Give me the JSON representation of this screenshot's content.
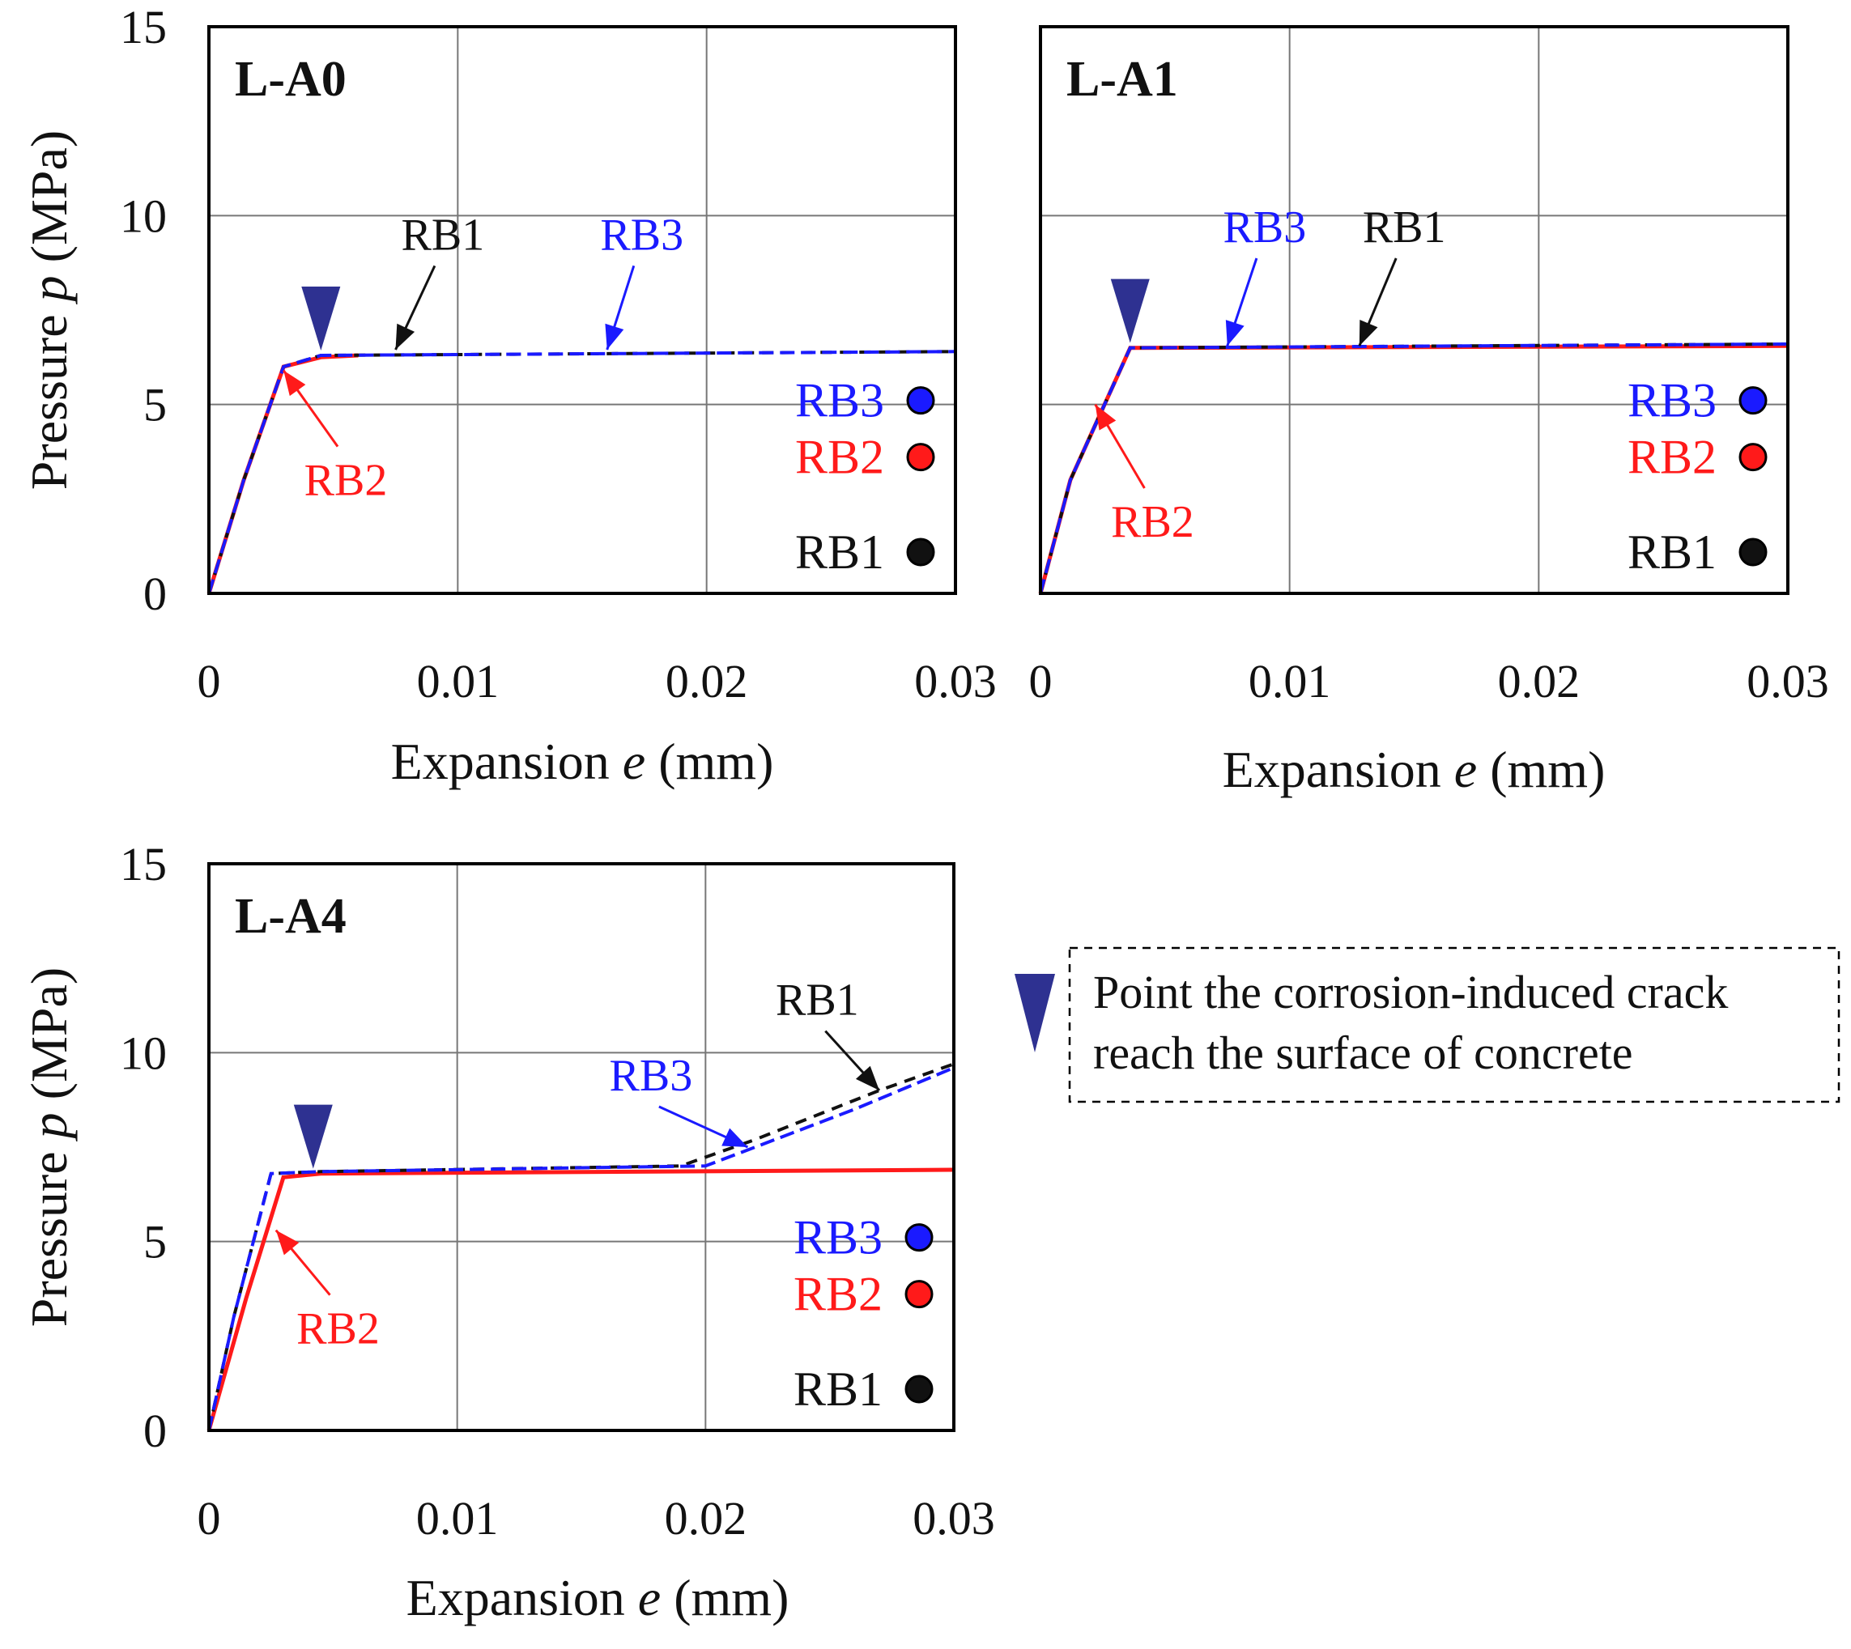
{
  "colors": {
    "RB1": "#111111",
    "RB2": "#ff1a1a",
    "RB3": "#1a1aff",
    "marker": "#2e3191"
  },
  "key": {
    "line1": "Point the corrosion-induced crack",
    "line2": "reach the surface of concrete",
    "marker_icon": "down-triangle-icon"
  },
  "chart_data": [
    {
      "type": "line",
      "title": "L-A0",
      "xlabel_prefix": "Expansion ",
      "xlabel_var": "e",
      "xlabel_suffix": " (mm)",
      "ylabel_prefix": "Pressure ",
      "ylabel_var": "p",
      "ylabel_suffix": " (MPa)",
      "xlim": [
        0,
        0.03
      ],
      "ylim": [
        0,
        15
      ],
      "x_ticks": [
        "0",
        "0.01",
        "0.02",
        "0.03"
      ],
      "y_ticks": [
        "0",
        "5",
        "10",
        "15"
      ],
      "grid": true,
      "legend": [
        "RB3",
        "RB2",
        "RB1"
      ],
      "crack_point": {
        "x": 0.0045,
        "y": 6.3
      },
      "series": [
        {
          "name": "RB1",
          "style": "dash",
          "points": [
            [
              0,
              0
            ],
            [
              0.0014,
              3.0
            ],
            [
              0.003,
              6.0
            ],
            [
              0.0045,
              6.3
            ],
            [
              0.03,
              6.4
            ]
          ]
        },
        {
          "name": "RB2",
          "style": "solid",
          "points": [
            [
              0,
              0
            ],
            [
              0.0014,
              3.0
            ],
            [
              0.003,
              6.0
            ],
            [
              0.0045,
              6.25
            ],
            [
              0.006,
              6.3
            ]
          ]
        },
        {
          "name": "RB3",
          "style": "dash",
          "points": [
            [
              0,
              0
            ],
            [
              0.0014,
              3.0
            ],
            [
              0.003,
              6.0
            ],
            [
              0.0045,
              6.3
            ],
            [
              0.03,
              6.4
            ]
          ]
        }
      ],
      "callouts": [
        {
          "label": "RB1",
          "series": "RB1",
          "text_at": [
            0.0094,
            9.1
          ],
          "arrow_to": [
            0.0075,
            6.45
          ]
        },
        {
          "label": "RB3",
          "series": "RB3",
          "text_at": [
            0.0174,
            9.1
          ],
          "arrow_to": [
            0.016,
            6.45
          ]
        },
        {
          "label": "RB2",
          "series": "RB2",
          "text_at": [
            0.0055,
            2.6
          ],
          "arrow_to": [
            0.003,
            5.9
          ]
        }
      ]
    },
    {
      "type": "line",
      "title": "L-A1",
      "xlabel_prefix": "Expansion ",
      "xlabel_var": "e",
      "xlabel_suffix": " (mm)",
      "ylabel_prefix": "",
      "ylabel_var": "",
      "ylabel_suffix": "",
      "xlim": [
        0,
        0.03
      ],
      "ylim": [
        0,
        15
      ],
      "x_ticks": [
        "0",
        "0.01",
        "0.02",
        "0.03"
      ],
      "y_ticks": [],
      "grid": true,
      "legend": [
        "RB3",
        "RB2",
        "RB1"
      ],
      "crack_point": {
        "x": 0.0036,
        "y": 6.5
      },
      "series": [
        {
          "name": "RB1",
          "style": "dash",
          "points": [
            [
              0,
              0
            ],
            [
              0.0012,
              3.0
            ],
            [
              0.0036,
              6.5
            ],
            [
              0.03,
              6.6
            ]
          ]
        },
        {
          "name": "RB2",
          "style": "solid",
          "points": [
            [
              0,
              0
            ],
            [
              0.0012,
              3.0
            ],
            [
              0.0036,
              6.5
            ],
            [
              0.03,
              6.55
            ]
          ]
        },
        {
          "name": "RB3",
          "style": "dash",
          "points": [
            [
              0,
              0
            ],
            [
              0.0012,
              3.0
            ],
            [
              0.0036,
              6.5
            ],
            [
              0.03,
              6.6
            ]
          ]
        }
      ],
      "callouts": [
        {
          "label": "RB1",
          "series": "RB1",
          "text_at": [
            0.0146,
            9.3
          ],
          "arrow_to": [
            0.0128,
            6.55
          ]
        },
        {
          "label": "RB3",
          "series": "RB3",
          "text_at": [
            0.009,
            9.3
          ],
          "arrow_to": [
            0.0075,
            6.55
          ]
        },
        {
          "label": "RB2",
          "series": "RB2",
          "text_at": [
            0.0045,
            1.5
          ],
          "arrow_to": [
            0.0022,
            5.0
          ]
        }
      ]
    },
    {
      "type": "line",
      "title": "L-A4",
      "xlabel_prefix": "Expansion ",
      "xlabel_var": "e",
      "xlabel_suffix": " (mm)",
      "ylabel_prefix": "Pressure ",
      "ylabel_var": "p",
      "ylabel_suffix": " (MPa)",
      "xlim": [
        0,
        0.03
      ],
      "ylim": [
        0,
        15
      ],
      "x_ticks": [
        "0",
        "0.01",
        "0.02",
        "0.03"
      ],
      "y_ticks": [
        "0",
        "5",
        "10",
        "15"
      ],
      "grid": true,
      "legend": [
        "RB3",
        "RB2",
        "RB1"
      ],
      "crack_point": {
        "x": 0.0042,
        "y": 6.8
      },
      "series": [
        {
          "name": "RB1",
          "style": "dash",
          "points": [
            [
              0,
              0
            ],
            [
              0.001,
              3.0
            ],
            [
              0.0025,
              6.8
            ],
            [
              0.0045,
              6.85
            ],
            [
              0.019,
              7.0
            ],
            [
              0.022,
              7.7
            ],
            [
              0.027,
              9.0
            ],
            [
              0.03,
              9.7
            ]
          ]
        },
        {
          "name": "RB2",
          "style": "solid",
          "points": [
            [
              0,
              0
            ],
            [
              0.0015,
              3.5
            ],
            [
              0.003,
              6.7
            ],
            [
              0.0045,
              6.8
            ],
            [
              0.03,
              6.9
            ]
          ]
        },
        {
          "name": "RB3",
          "style": "dash",
          "points": [
            [
              0,
              0
            ],
            [
              0.001,
              3.0
            ],
            [
              0.0025,
              6.8
            ],
            [
              0.0045,
              6.85
            ],
            [
              0.02,
              7.0
            ],
            [
              0.022,
              7.5
            ],
            [
              0.026,
              8.5
            ],
            [
              0.03,
              9.6
            ]
          ]
        }
      ],
      "callouts": [
        {
          "label": "RB1",
          "series": "RB1",
          "text_at": [
            0.0245,
            11.0
          ],
          "arrow_to": [
            0.027,
            9.0
          ]
        },
        {
          "label": "RB3",
          "series": "RB3",
          "text_at": [
            0.0178,
            9.0
          ],
          "arrow_to": [
            0.0217,
            7.5
          ]
        },
        {
          "label": "RB2",
          "series": "RB2",
          "text_at": [
            0.0052,
            2.3
          ],
          "arrow_to": [
            0.0027,
            5.3
          ]
        }
      ]
    }
  ]
}
